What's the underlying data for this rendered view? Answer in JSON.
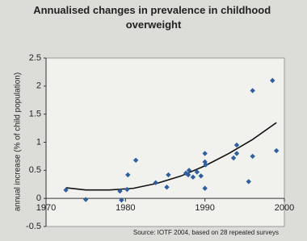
{
  "chart_data": {
    "type": "scatter",
    "title": "Annualised changes in prevalence in childhood overweight",
    "y_label": "annual increase (% of child population)",
    "source": "Source: IOTF 2004, based on 28 repeated surveys",
    "color": "#2f5f9f",
    "x": [
      1972.5,
      1975,
      1979.3,
      1979.5,
      1980.2,
      1980.3,
      1981.3,
      1983.8,
      1985.4,
      1985.2,
      1987.6,
      1988,
      1988.5,
      1989,
      1989.5,
      1990,
      1990,
      1990.1,
      1990,
      1993.6,
      1994,
      1994,
      1995.5,
      1996,
      1996,
      1998.5,
      1999,
      1987.9
    ],
    "values": [
      0.15,
      -0.02,
      0.13,
      -0.03,
      0.16,
      0.42,
      0.68,
      0.28,
      0.42,
      0.2,
      0.45,
      0.5,
      0.38,
      0.47,
      0.4,
      0.8,
      0.65,
      0.6,
      0.18,
      0.72,
      0.8,
      0.95,
      0.3,
      1.92,
      0.75,
      2.1,
      0.85,
      0.42
    ],
    "trendline": {
      "color": "#111111",
      "x": [
        1972.5,
        1975,
        1978,
        1981,
        1984,
        1987,
        1990,
        1993,
        1996,
        1999
      ],
      "values": [
        0.19,
        0.15,
        0.15,
        0.18,
        0.27,
        0.4,
        0.58,
        0.8,
        1.05,
        1.35
      ]
    },
    "xlim": [
      1970,
      2000
    ],
    "xticks": [
      1970,
      1980,
      1990,
      2000
    ],
    "ylim": [
      -0.5,
      2.5
    ],
    "yticks": [
      -0.5,
      0,
      0.5,
      1,
      1.5,
      2,
      2.5
    ],
    "grid": false
  }
}
